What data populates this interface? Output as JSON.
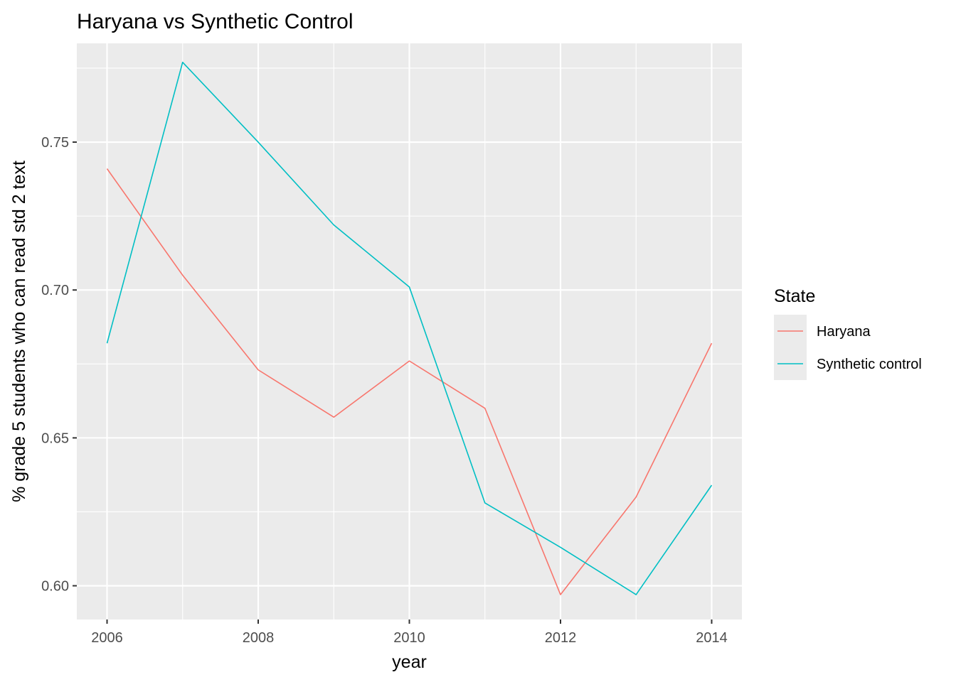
{
  "chart_data": {
    "type": "line",
    "title": "Haryana vs Synthetic Control",
    "xlabel": "year",
    "ylabel": "% grade 5 students who can read std 2 text",
    "xlim": [
      2005.6,
      2014.4
    ],
    "ylim": [
      0.5886,
      0.7834
    ],
    "x_ticks": [
      2006,
      2008,
      2010,
      2012,
      2014
    ],
    "x_tick_labels": [
      "2006",
      "2008",
      "2010",
      "2012",
      "2014"
    ],
    "y_ticks": [
      0.6,
      0.65,
      0.7,
      0.75
    ],
    "y_tick_labels": [
      "0.60",
      "0.65",
      "0.70",
      "0.75"
    ],
    "grid": true,
    "legend": {
      "title": "State",
      "position": "right"
    },
    "x": [
      2006,
      2007,
      2008,
      2009,
      2010,
      2011,
      2012,
      2013,
      2014
    ],
    "series": [
      {
        "name": "Haryana",
        "color": "#F8766D",
        "values": [
          0.741,
          0.705,
          0.673,
          0.657,
          0.676,
          0.66,
          0.597,
          0.63,
          0.682
        ]
      },
      {
        "name": "Synthetic control",
        "color": "#00BFC4",
        "values": [
          0.682,
          0.777,
          0.75,
          0.722,
          0.701,
          0.628,
          0.613,
          0.597,
          0.634
        ]
      }
    ]
  }
}
